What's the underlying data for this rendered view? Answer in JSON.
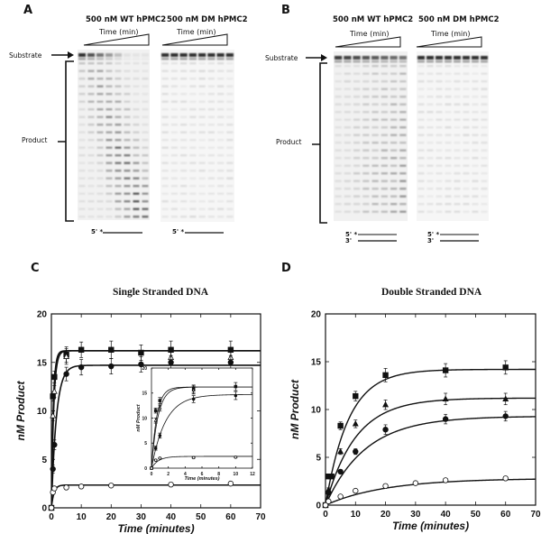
{
  "panels": {
    "A": {
      "letter": "A",
      "gels": [
        {
          "header": "500 nM WT hPMC2",
          "time_label": "Time (min)",
          "strand": [
            "5' *"
          ],
          "lanes": 8,
          "activity": "high"
        },
        {
          "header": "500 nM DM hPMC2",
          "time_label": "Time (min)",
          "strand": [
            "5' *"
          ],
          "lanes": 8,
          "activity": "low"
        }
      ],
      "substrate_label": "Substrate",
      "product_label": "Product"
    },
    "B": {
      "letter": "B",
      "gels": [
        {
          "header": "500 nM WT hPMC2",
          "time_label": "Time (min)",
          "strand": [
            "5' *",
            "3'"
          ],
          "lanes": 8,
          "activity": "medium"
        },
        {
          "header": "500 nM DM hPMC2",
          "time_label": "Time (min)",
          "strand": [
            "5' *",
            "3'"
          ],
          "lanes": 8,
          "activity": "low"
        }
      ],
      "substrate_label": "Substrate",
      "product_label": "Product"
    },
    "C": {
      "letter": "C"
    },
    "D": {
      "letter": "D"
    }
  },
  "chart_data": [
    {
      "id": "C",
      "type": "scatter",
      "title": "Single Stranded DNA",
      "xlabel": "Time (minutes)",
      "ylabel": "nM Product",
      "xlim": [
        0,
        70
      ],
      "ylim": [
        0,
        20
      ],
      "xticks": [
        0,
        10,
        20,
        30,
        40,
        50,
        60,
        70
      ],
      "yticks": [
        0,
        5,
        10,
        15,
        20
      ],
      "series": [
        {
          "name": "filled-square",
          "marker": "square-filled",
          "plateau": 16.2,
          "rate": 1.6,
          "x": [
            0,
            0.5,
            1,
            5,
            10,
            20,
            30,
            40,
            60
          ],
          "y": [
            0,
            11.5,
            13.5,
            15.8,
            16.3,
            16.3,
            16.0,
            16.3,
            16.3
          ],
          "err": [
            0,
            0.5,
            0.6,
            0.8,
            0.8,
            0.9,
            0.8,
            0.9,
            0.9
          ]
        },
        {
          "name": "open-triangle",
          "marker": "triangle-open",
          "plateau": 16.2,
          "rate": 1.3,
          "x": [
            0,
            0.5,
            1,
            5,
            40,
            60
          ],
          "y": [
            0,
            9.5,
            12.0,
            15.6,
            15.5,
            15.5
          ],
          "err": [
            0,
            0.5,
            0.6,
            0.8,
            0.7,
            0.7
          ]
        },
        {
          "name": "filled-circle",
          "marker": "circle-filled",
          "plateau": 14.7,
          "rate": 0.6,
          "x": [
            0,
            0.5,
            1,
            5,
            10,
            20,
            30,
            40,
            60
          ],
          "y": [
            0,
            4.0,
            6.5,
            13.8,
            14.5,
            14.6,
            14.8,
            15.0,
            15.0
          ],
          "err": [
            0,
            0.4,
            0.5,
            0.7,
            0.8,
            0.8,
            0.8,
            0.7,
            0.7
          ]
        },
        {
          "name": "open-circle",
          "marker": "circle-open",
          "plateau": 2.35,
          "rate": 1.2,
          "x": [
            0,
            0.5,
            1,
            5,
            10,
            20,
            40,
            60
          ],
          "y": [
            0,
            1.6,
            2.0,
            2.1,
            2.2,
            2.3,
            2.4,
            2.5
          ],
          "err": [
            0,
            0.1,
            0.1,
            0.1,
            0.1,
            0.1,
            0.1,
            0.1
          ]
        }
      ],
      "inset": {
        "xlabel": "Time (minutes)",
        "ylabel": "nM Product",
        "xlim": [
          0,
          12
        ],
        "ylim": [
          0,
          20
        ],
        "xticks": [
          0,
          2,
          4,
          6,
          8,
          10,
          12
        ],
        "yticks": [
          0,
          5,
          10,
          15,
          20
        ]
      }
    },
    {
      "id": "D",
      "type": "scatter",
      "title": "Double Stranded  DNA",
      "xlabel": "Time (minutes)",
      "ylabel": "nM Product",
      "xlim": [
        0,
        70
      ],
      "ylim": [
        0,
        20
      ],
      "xticks": [
        0,
        10,
        20,
        30,
        40,
        50,
        60,
        70
      ],
      "yticks": [
        0,
        5,
        10,
        15,
        20
      ],
      "series": [
        {
          "name": "filled-square",
          "marker": "square-filled",
          "plateau": 14.2,
          "rate": 0.13,
          "x": [
            0,
            1,
            2,
            5,
            10,
            20,
            40,
            60
          ],
          "y": [
            0,
            3.0,
            3.0,
            8.3,
            11.4,
            13.6,
            14.1,
            14.4
          ],
          "err": [
            0,
            0.2,
            0.2,
            0.4,
            0.5,
            0.7,
            0.7,
            0.7
          ]
        },
        {
          "name": "filled-triangle",
          "marker": "triangle-filled",
          "plateau": 11.2,
          "rate": 0.1,
          "x": [
            0,
            1,
            5,
            10,
            20,
            40,
            60
          ],
          "y": [
            0,
            1.6,
            5.6,
            8.5,
            10.5,
            11.1,
            11.1
          ],
          "err": [
            0,
            0.2,
            0.3,
            0.4,
            0.5,
            0.6,
            0.6
          ]
        },
        {
          "name": "filled-circle",
          "marker": "circle-filled",
          "plateau": 9.3,
          "rate": 0.075,
          "x": [
            0,
            1,
            5,
            10,
            20,
            40,
            60
          ],
          "y": [
            0,
            1.3,
            3.5,
            5.6,
            7.9,
            9.0,
            9.3
          ],
          "err": [
            0,
            0.1,
            0.2,
            0.3,
            0.5,
            0.5,
            0.5
          ]
        },
        {
          "name": "open-circle",
          "marker": "circle-open",
          "plateau": 2.8,
          "rate": 0.05,
          "x": [
            0,
            1,
            5,
            10,
            20,
            30,
            40,
            60
          ],
          "y": [
            0,
            0.4,
            0.9,
            1.5,
            2.0,
            2.3,
            2.6,
            2.8
          ],
          "err": [
            0,
            0.05,
            0.1,
            0.1,
            0.1,
            0.1,
            0.1,
            0.1
          ]
        }
      ]
    }
  ]
}
